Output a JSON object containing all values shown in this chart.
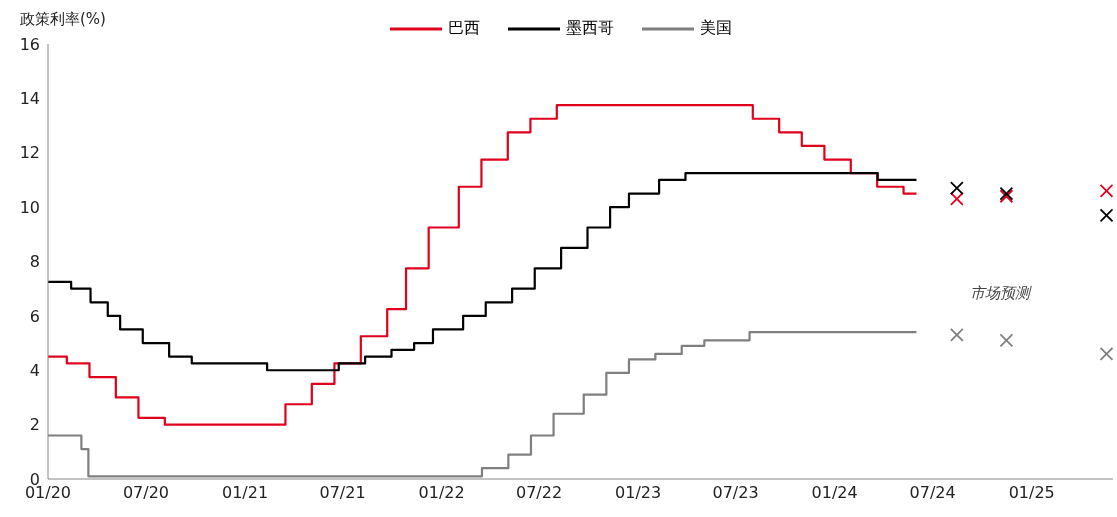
{
  "chart_data": {
    "type": "step",
    "ylabel": "政策利率(%)",
    "annotations": [
      "市场预测"
    ],
    "xlim": [
      "2020-01-01",
      "2025-06-01"
    ],
    "xticks": [
      {
        "value": "2020-01-01",
        "label": "01/20"
      },
      {
        "value": "2020-07-01",
        "label": "07/20"
      },
      {
        "value": "2021-01-01",
        "label": "01/21"
      },
      {
        "value": "2021-07-01",
        "label": "07/21"
      },
      {
        "value": "2022-01-01",
        "label": "01/22"
      },
      {
        "value": "2022-07-01",
        "label": "07/22"
      },
      {
        "value": "2023-01-01",
        "label": "01/23"
      },
      {
        "value": "2023-07-01",
        "label": "07/23"
      },
      {
        "value": "2024-01-01",
        "label": "01/24"
      },
      {
        "value": "2024-07-01",
        "label": "07/24"
      },
      {
        "value": "2025-01-01",
        "label": "01/25"
      }
    ],
    "ylim": [
      0,
      16
    ],
    "yticks": [
      0,
      2,
      4,
      6,
      8,
      10,
      12,
      14,
      16
    ],
    "grid": false,
    "legend": "top",
    "line_style": "solid",
    "series": [
      {
        "name": "巴西",
        "color": "#e0001b",
        "x": [
          "2020-01-01",
          "2020-02-05",
          "2020-03-18",
          "2020-05-06",
          "2020-06-17",
          "2020-08-05",
          "2021-03-17",
          "2021-05-05",
          "2021-06-16",
          "2021-08-04",
          "2021-09-22",
          "2021-10-27",
          "2021-12-08",
          "2022-02-02",
          "2022-03-16",
          "2022-05-04",
          "2022-06-15",
          "2022-08-03",
          "2023-08-02",
          "2023-09-20",
          "2023-11-01",
          "2023-12-13",
          "2024-01-31",
          "2024-03-20",
          "2024-05-08",
          "2024-06-01"
        ],
        "values": [
          4.5,
          4.25,
          3.75,
          3.0,
          2.25,
          2.0,
          2.75,
          3.5,
          4.25,
          5.25,
          6.25,
          7.75,
          9.25,
          10.75,
          11.75,
          12.75,
          13.25,
          13.75,
          13.25,
          12.75,
          12.25,
          11.75,
          11.25,
          10.75,
          10.5,
          10.5
        ]
      },
      {
        "name": "墨西哥",
        "color": "#000000",
        "x": [
          "2020-01-01",
          "2020-02-13",
          "2020-03-20",
          "2020-04-21",
          "2020-05-14",
          "2020-06-25",
          "2020-08-13",
          "2020-09-24",
          "2021-02-11",
          "2021-06-24",
          "2021-08-12",
          "2021-09-30",
          "2021-11-11",
          "2021-12-16",
          "2022-02-10",
          "2022-03-24",
          "2022-05-12",
          "2022-06-23",
          "2022-08-11",
          "2022-09-29",
          "2022-11-10",
          "2022-12-15",
          "2023-02-09",
          "2023-03-30",
          "2024-03-21",
          "2024-06-01"
        ],
        "values": [
          7.25,
          7.0,
          6.5,
          6.0,
          5.5,
          5.0,
          4.5,
          4.25,
          4.0,
          4.25,
          4.5,
          4.75,
          5.0,
          5.5,
          6.0,
          6.5,
          7.0,
          7.75,
          8.5,
          9.25,
          10.0,
          10.5,
          11.0,
          11.25,
          11.0,
          11.0
        ]
      },
      {
        "name": "美国",
        "color": "#7f7f7f",
        "x": [
          "2020-01-01",
          "2020-03-03",
          "2020-03-16",
          "2022-03-17",
          "2022-05-05",
          "2022-06-16",
          "2022-07-28",
          "2022-09-22",
          "2022-11-03",
          "2022-12-15",
          "2023-02-02",
          "2023-03-23",
          "2023-05-04",
          "2023-07-27",
          "2024-06-01"
        ],
        "values": [
          1.6,
          1.1,
          0.1,
          0.4,
          0.9,
          1.6,
          2.4,
          3.1,
          3.9,
          4.4,
          4.6,
          4.9,
          5.1,
          5.4,
          5.4
        ]
      },
      {
        "type": "scatter",
        "marker": "cross",
        "color": "#e0001b",
        "x": [
          "2024-08-15",
          "2024-11-15",
          "2025-05-20"
        ],
        "values": [
          10.3,
          10.4,
          10.6
        ]
      },
      {
        "type": "scatter",
        "marker": "cross",
        "color": "#000000",
        "x": [
          "2024-08-15",
          "2024-11-15",
          "2025-05-20"
        ],
        "values": [
          10.7,
          10.5,
          9.7
        ]
      },
      {
        "type": "scatter",
        "marker": "cross",
        "color": "#7f7f7f",
        "x": [
          "2024-08-15",
          "2024-11-15",
          "2025-05-20"
        ],
        "values": [
          5.3,
          5.1,
          4.6
        ]
      }
    ]
  }
}
